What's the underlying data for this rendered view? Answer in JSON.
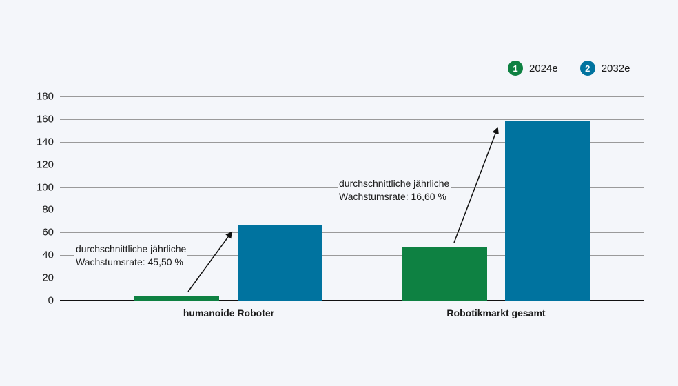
{
  "legend": [
    {
      "badge": "1",
      "label": "2024e",
      "color": "#0e8142"
    },
    {
      "badge": "2",
      "label": "2032e",
      "color": "#00739f"
    }
  ],
  "y_ticks": [
    "180",
    "160",
    "140",
    "120",
    "100",
    "80",
    "60",
    "40",
    "20",
    "0"
  ],
  "categories": [
    "humanoide Roboter",
    "Robotikmarkt gesamt"
  ],
  "annotations": [
    {
      "line1": "durchschnittliche jährliche",
      "line2": "Wachstumsrate: 45,50 %"
    },
    {
      "line1": "durchschnittliche jährliche",
      "line2": "Wachstumsrate: 16,60 %"
    }
  ],
  "chart_data": {
    "type": "bar",
    "title": "",
    "xlabel": "",
    "ylabel": "",
    "ylim": [
      0,
      180
    ],
    "yticks": [
      0,
      20,
      40,
      60,
      80,
      100,
      120,
      140,
      160,
      180
    ],
    "grid": true,
    "legend_position": "top-right",
    "categories": [
      "humanoide Roboter",
      "Robotikmarkt gesamt"
    ],
    "series": [
      {
        "name": "2024e",
        "color": "#0e8142",
        "values": [
          4,
          47
        ]
      },
      {
        "name": "2032e",
        "color": "#00739f",
        "values": [
          66.5,
          158
        ]
      }
    ],
    "annotations": [
      {
        "category": "humanoide Roboter",
        "text": "durchschnittliche jährliche Wachstumsrate: 45,50 %"
      },
      {
        "category": "Robotikmarkt gesamt",
        "text": "durchschnittliche jährliche Wachstumsrate: 16,60 %"
      }
    ]
  }
}
